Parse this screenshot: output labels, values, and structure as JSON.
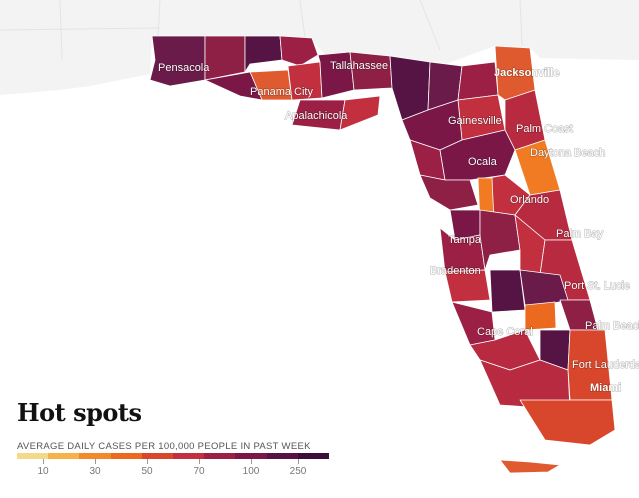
{
  "title": "Hot spots",
  "legend": {
    "subtitle": "AVERAGE DAILY CASES PER 100,000 PEOPLE IN PAST WEEK",
    "tick_labels": [
      "10",
      "30",
      "50",
      "70",
      "100",
      "250"
    ],
    "colors": [
      "#f3d98a",
      "#f6b24d",
      "#f28a2b",
      "#ec6a1f",
      "#d8472b",
      "#c2303f",
      "#9c1f45",
      "#7a1747",
      "#561444",
      "#3a0f3a"
    ]
  },
  "cities": [
    {
      "name": "Pensacola",
      "bold": false
    },
    {
      "name": "Tallahassee",
      "bold": false
    },
    {
      "name": "Panama City",
      "bold": false
    },
    {
      "name": "Apalachicola",
      "bold": false
    },
    {
      "name": "Jacksonville",
      "bold": true
    },
    {
      "name": "Gainesville",
      "bold": false
    },
    {
      "name": "Palm Coast",
      "bold": false
    },
    {
      "name": "Daytona Beach",
      "bold": false
    },
    {
      "name": "Ocala",
      "bold": false
    },
    {
      "name": "Orlando",
      "bold": false
    },
    {
      "name": "Palm Bay",
      "bold": false
    },
    {
      "name": "Tampa",
      "bold": false
    },
    {
      "name": "Bradenton",
      "bold": false
    },
    {
      "name": "Port St. Lucie",
      "bold": false
    },
    {
      "name": "Cape Coral",
      "bold": false
    },
    {
      "name": "Palm Beach",
      "bold": false
    },
    {
      "name": "Fort Lauderdale",
      "bold": false
    },
    {
      "name": "Miami",
      "bold": true
    }
  ],
  "colors": {
    "land_other": "#f2f2f2",
    "water": "#ffffff",
    "county_border": "#ffffff"
  }
}
